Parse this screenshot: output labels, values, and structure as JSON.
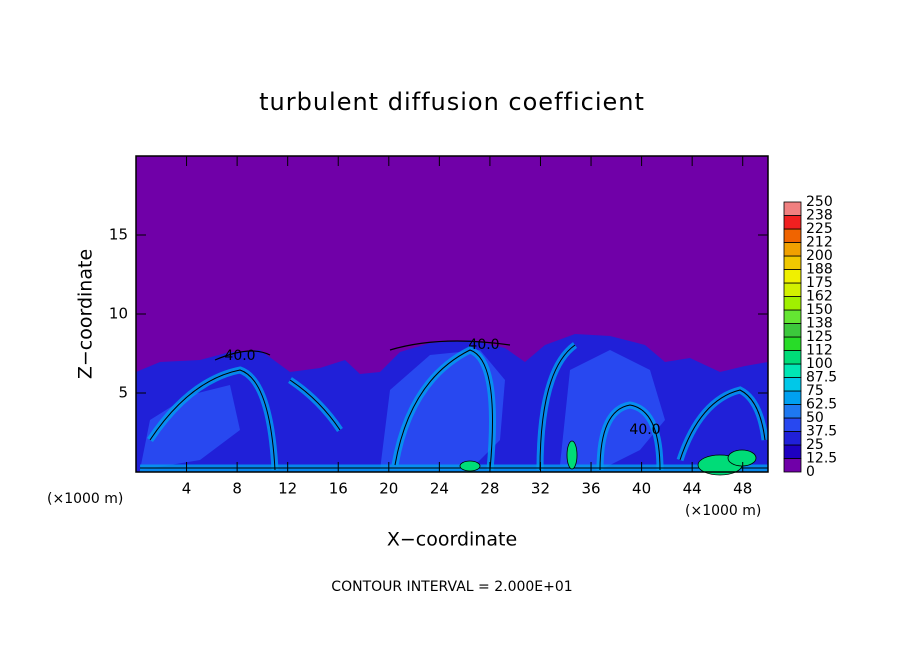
{
  "chart_data": {
    "type": "contour",
    "title": "turbulent diffusion coefficient",
    "x_label": "X−coordinate",
    "y_label": "Z−coordinate",
    "x_unit": "(×1000 m)",
    "footnote": "CONTOUR INTERVAL = 2.000E+01",
    "xlim": [
      0,
      50
    ],
    "xticks": [
      4,
      8,
      12,
      16,
      20,
      24,
      28,
      32,
      36,
      40,
      44,
      48
    ],
    "ylim": [
      0,
      20
    ],
    "yticks": [
      5,
      10,
      15
    ],
    "contour_labels": [
      "40.0",
      "40.0",
      "40.0"
    ],
    "colorbar": {
      "levels": [
        0,
        12.5,
        25,
        37.5,
        50,
        62.5,
        75,
        87.5,
        100,
        112,
        125,
        138,
        150,
        162,
        175,
        188,
        200,
        212,
        225,
        238,
        250
      ],
      "colors": [
        "#7000a8",
        "#1e00c0",
        "#2020d8",
        "#2848f0",
        "#1e78f0",
        "#00a0f0",
        "#00c8e8",
        "#00e6b4",
        "#00dc78",
        "#28dc28",
        "#3cc83c",
        "#64e632",
        "#a0f000",
        "#d2f000",
        "#f0f000",
        "#f0c800",
        "#f0a000",
        "#f06400",
        "#f02020",
        "#f08080"
      ]
    }
  }
}
